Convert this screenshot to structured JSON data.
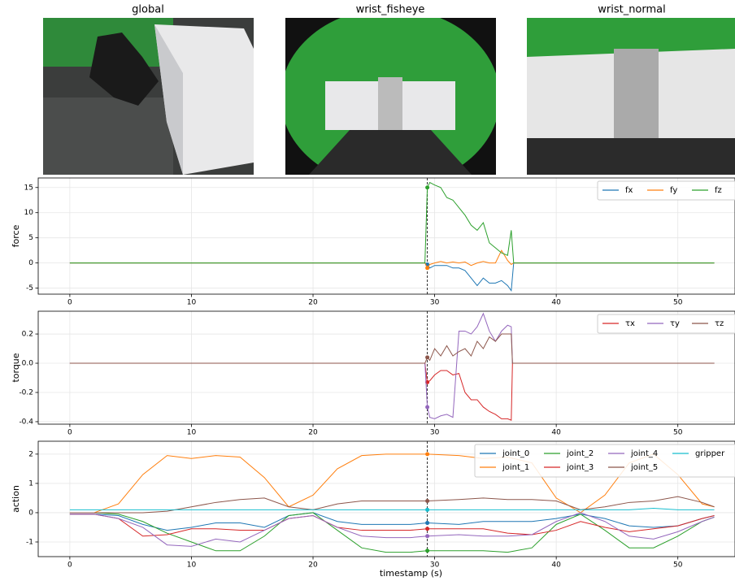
{
  "images": [
    {
      "title": "global"
    },
    {
      "title": "wrist_fisheye"
    },
    {
      "title": "wrist_normal"
    }
  ],
  "chart_data": [
    {
      "type": "line",
      "ylabel": "force",
      "x": [
        0,
        29.2,
        29.4,
        29.6,
        30,
        30.5,
        31,
        31.5,
        32,
        32.5,
        33,
        33.5,
        34,
        34.5,
        35,
        35.5,
        36,
        36.3,
        36.5,
        53
      ],
      "series": [
        {
          "name": "fx",
          "color": "#1f77b4",
          "values": [
            0,
            0,
            -0.3,
            -1,
            -0.5,
            -0.5,
            -0.5,
            -1,
            -1,
            -1.5,
            -3,
            -4.5,
            -3,
            -4,
            -4,
            -3.5,
            -4.5,
            -5.5,
            0,
            0
          ]
        },
        {
          "name": "fy",
          "color": "#ff7f0e",
          "values": [
            0,
            0,
            -1,
            -0.3,
            0,
            0.3,
            0,
            0.2,
            0,
            0.2,
            -0.5,
            0,
            0.3,
            0,
            0,
            2.5,
            0.5,
            -0.3,
            0,
            0
          ]
        },
        {
          "name": "fz",
          "color": "#2ca02c",
          "values": [
            0,
            0,
            15,
            16,
            15.5,
            15,
            13,
            12.5,
            11,
            9.5,
            7.5,
            6.5,
            8,
            4,
            3,
            2,
            1.5,
            6.5,
            0,
            0
          ]
        }
      ],
      "marker_x": 29.4,
      "xlim": [
        -2.6,
        54.7
      ],
      "xticks": [
        0,
        10,
        20,
        30,
        40,
        50
      ],
      "ylim": [
        -6.2,
        16.9
      ],
      "yticks": [
        -5,
        0,
        5,
        10,
        15
      ],
      "grid": true,
      "legend": "upper right"
    },
    {
      "type": "line",
      "ylabel": "torque",
      "x": [
        0,
        29.2,
        29.4,
        29.6,
        30,
        30.5,
        31,
        31.5,
        32,
        32.5,
        33,
        33.5,
        34,
        34.5,
        35,
        35.5,
        36,
        36.3,
        36.4,
        53
      ],
      "series": [
        {
          "name": "τx",
          "color": "#d62728",
          "values": [
            0,
            0,
            -0.13,
            -0.12,
            -0.08,
            -0.05,
            -0.05,
            -0.08,
            -0.07,
            -0.2,
            -0.25,
            -0.25,
            -0.3,
            -0.33,
            -0.35,
            -0.38,
            -0.38,
            -0.39,
            0,
            0
          ]
        },
        {
          "name": "τy",
          "color": "#9467bd",
          "values": [
            0,
            0,
            -0.3,
            -0.37,
            -0.38,
            -0.36,
            -0.35,
            -0.37,
            0.22,
            0.22,
            0.2,
            0.25,
            0.34,
            0.22,
            0.15,
            0.22,
            0.26,
            0.25,
            0,
            0
          ]
        },
        {
          "name": "τz",
          "color": "#8c564b",
          "values": [
            0,
            0,
            0.04,
            0.02,
            0.1,
            0.05,
            0.12,
            0.05,
            0.08,
            0.1,
            0.05,
            0.15,
            0.1,
            0.18,
            0.15,
            0.2,
            0.2,
            0.2,
            0,
            0
          ]
        }
      ],
      "marker_x": 29.4,
      "xlim": [
        -2.6,
        54.7
      ],
      "xticks": [
        0,
        10,
        20,
        30,
        40,
        50
      ],
      "ylim": [
        -0.417,
        0.356
      ],
      "yticks": [
        -0.4,
        -0.2,
        {
          "value": 0,
          "label": "0.0"
        },
        0.2
      ],
      "grid": true,
      "legend": "upper right"
    },
    {
      "type": "line",
      "ylabel": "action",
      "xlabel": "timestamp (s)",
      "x": [
        0,
        2,
        4,
        6,
        8,
        10,
        12,
        14,
        16,
        18,
        20,
        22,
        24,
        26,
        28,
        29.4,
        32,
        34,
        36,
        38,
        40,
        42,
        44,
        46,
        48,
        50,
        52,
        53
      ],
      "series": [
        {
          "name": "joint_0",
          "color": "#1f77b4",
          "values": [
            -0.05,
            -0.05,
            -0.1,
            -0.4,
            -0.6,
            -0.5,
            -0.35,
            -0.35,
            -0.5,
            -0.1,
            0,
            -0.3,
            -0.4,
            -0.4,
            -0.4,
            -0.35,
            -0.4,
            -0.3,
            -0.3,
            -0.3,
            -0.2,
            -0.05,
            -0.2,
            -0.45,
            -0.5,
            -0.45,
            -0.2,
            -0.1
          ]
        },
        {
          "name": "joint_1",
          "color": "#ff7f0e",
          "values": [
            0,
            0,
            0.3,
            1.3,
            1.95,
            1.85,
            1.95,
            1.9,
            1.2,
            0.2,
            0.6,
            1.5,
            1.95,
            2.0,
            2.0,
            2.0,
            1.95,
            1.85,
            1.9,
            1.7,
            0.5,
            0,
            0.6,
            1.7,
            2.0,
            1.3,
            0.3,
            0.2
          ]
        },
        {
          "name": "joint_2",
          "color": "#2ca02c",
          "values": [
            0,
            0,
            -0.05,
            -0.3,
            -0.7,
            -1.0,
            -1.3,
            -1.3,
            -0.8,
            -0.1,
            0,
            -0.6,
            -1.2,
            -1.35,
            -1.35,
            -1.3,
            -1.3,
            -1.3,
            -1.35,
            -1.2,
            -0.4,
            -0.05,
            -0.6,
            -1.2,
            -1.2,
            -0.8,
            -0.3,
            -0.15
          ]
        },
        {
          "name": "joint_3",
          "color": "#d62728",
          "values": [
            -0.05,
            -0.05,
            -0.2,
            -0.8,
            -0.75,
            -0.55,
            -0.55,
            -0.6,
            -0.6,
            -0.2,
            -0.1,
            -0.5,
            -0.6,
            -0.6,
            -0.6,
            -0.55,
            -0.55,
            -0.55,
            -0.7,
            -0.75,
            -0.6,
            -0.3,
            -0.5,
            -0.65,
            -0.55,
            -0.45,
            -0.2,
            -0.1
          ]
        },
        {
          "name": "joint_4",
          "color": "#9467bd",
          "values": [
            -0.05,
            -0.05,
            -0.2,
            -0.5,
            -1.1,
            -1.15,
            -0.9,
            -1.0,
            -0.6,
            -0.2,
            -0.1,
            -0.5,
            -0.8,
            -0.85,
            -0.85,
            -0.8,
            -0.75,
            -0.8,
            -0.8,
            -0.75,
            -0.3,
            0,
            -0.3,
            -0.8,
            -0.9,
            -0.65,
            -0.3,
            -0.15
          ]
        },
        {
          "name": "joint_5",
          "color": "#8c564b",
          "values": [
            0,
            0,
            0,
            0,
            0.05,
            0.2,
            0.35,
            0.45,
            0.5,
            0.2,
            0.1,
            0.3,
            0.4,
            0.4,
            0.4,
            0.4,
            0.45,
            0.5,
            0.45,
            0.45,
            0.4,
            0.1,
            0.2,
            0.35,
            0.4,
            0.55,
            0.35,
            0.2
          ]
        },
        {
          "name": "gripper",
          "color": "#17becf",
          "values": [
            0.1,
            0.1,
            0.1,
            0.1,
            0.1,
            0.1,
            0.1,
            0.1,
            0.1,
            0.1,
            0.1,
            0.1,
            0.1,
            0.1,
            0.1,
            0.1,
            0.1,
            0.1,
            0.1,
            0.1,
            0.1,
            0.1,
            0.1,
            0.1,
            0.15,
            0.1,
            0.1,
            0.1
          ]
        }
      ],
      "marker_x": 29.4,
      "xlim": [
        -2.6,
        54.7
      ],
      "xticks": [
        0,
        10,
        20,
        30,
        40,
        50
      ],
      "ylim": [
        -1.5,
        2.44
      ],
      "yticks": [
        -1,
        0,
        1,
        2
      ],
      "grid": true,
      "legend": "upper right"
    }
  ]
}
